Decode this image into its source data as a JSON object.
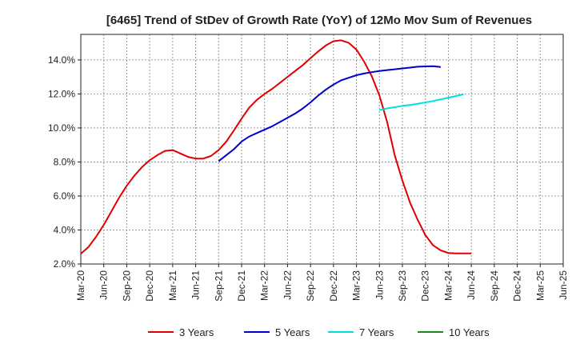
{
  "chart_data": {
    "type": "line",
    "title": "[6465]  Trend of StDev of Growth Rate (YoY) of 12Mo Mov Sum of Revenues",
    "xlabel": "",
    "ylabel": "",
    "ylim": [
      2.0,
      15.5
    ],
    "y_ticks": [
      2.0,
      4.0,
      6.0,
      8.0,
      10.0,
      12.0,
      14.0
    ],
    "y_tick_labels": [
      "2.0%",
      "4.0%",
      "6.0%",
      "8.0%",
      "10.0%",
      "12.0%",
      "14.0%"
    ],
    "x_ticks": [
      "Mar-20",
      "Jun-20",
      "Sep-20",
      "Dec-20",
      "Mar-21",
      "Jun-21",
      "Sep-21",
      "Dec-21",
      "Mar-22",
      "Jun-22",
      "Sep-22",
      "Dec-22",
      "Mar-23",
      "Jun-23",
      "Sep-23",
      "Dec-23",
      "Mar-24",
      "Jun-24",
      "Sep-24",
      "Dec-24",
      "Mar-25",
      "Jun-25"
    ],
    "grid": true,
    "legend_position": "bottom",
    "series": [
      {
        "name": "3 Years",
        "color": "#e00000",
        "start_index": 0,
        "values": [
          2.6,
          3.0,
          3.6,
          4.3,
          5.1,
          5.9,
          6.6,
          7.2,
          7.7,
          8.1,
          8.4,
          8.65,
          8.7,
          8.5,
          8.3,
          8.2,
          8.2,
          8.35,
          8.7,
          9.2,
          9.85,
          10.55,
          11.2,
          11.65,
          12.0,
          12.3,
          12.65,
          13.0,
          13.35,
          13.7,
          14.1,
          14.5,
          14.85,
          15.1,
          15.15,
          15.0,
          14.6,
          13.9,
          13.05,
          11.9,
          10.35,
          8.4,
          6.9,
          5.6,
          4.6,
          3.7,
          3.1,
          2.8,
          2.65,
          2.62,
          2.62,
          2.62
        ]
      },
      {
        "name": "5 Years",
        "color": "#0000cc",
        "start_index": 18,
        "values": [
          8.05,
          8.4,
          8.75,
          9.2,
          9.5,
          9.7,
          9.9,
          10.1,
          10.35,
          10.6,
          10.85,
          11.15,
          11.5,
          11.9,
          12.25,
          12.55,
          12.8,
          12.95,
          13.1,
          13.2,
          13.28,
          13.35,
          13.4,
          13.45,
          13.5,
          13.55,
          13.6,
          13.62,
          13.63,
          13.58
        ]
      },
      {
        "name": "7 Years",
        "color": "#00e0e0",
        "start_index": 39,
        "values": [
          11.05,
          11.15,
          11.22,
          11.3,
          11.35,
          11.42,
          11.5,
          11.58,
          11.68,
          11.78,
          11.88,
          11.98
        ]
      },
      {
        "name": "10 Years",
        "color": "#1a8a1a",
        "start_index": 0,
        "values": []
      }
    ]
  }
}
